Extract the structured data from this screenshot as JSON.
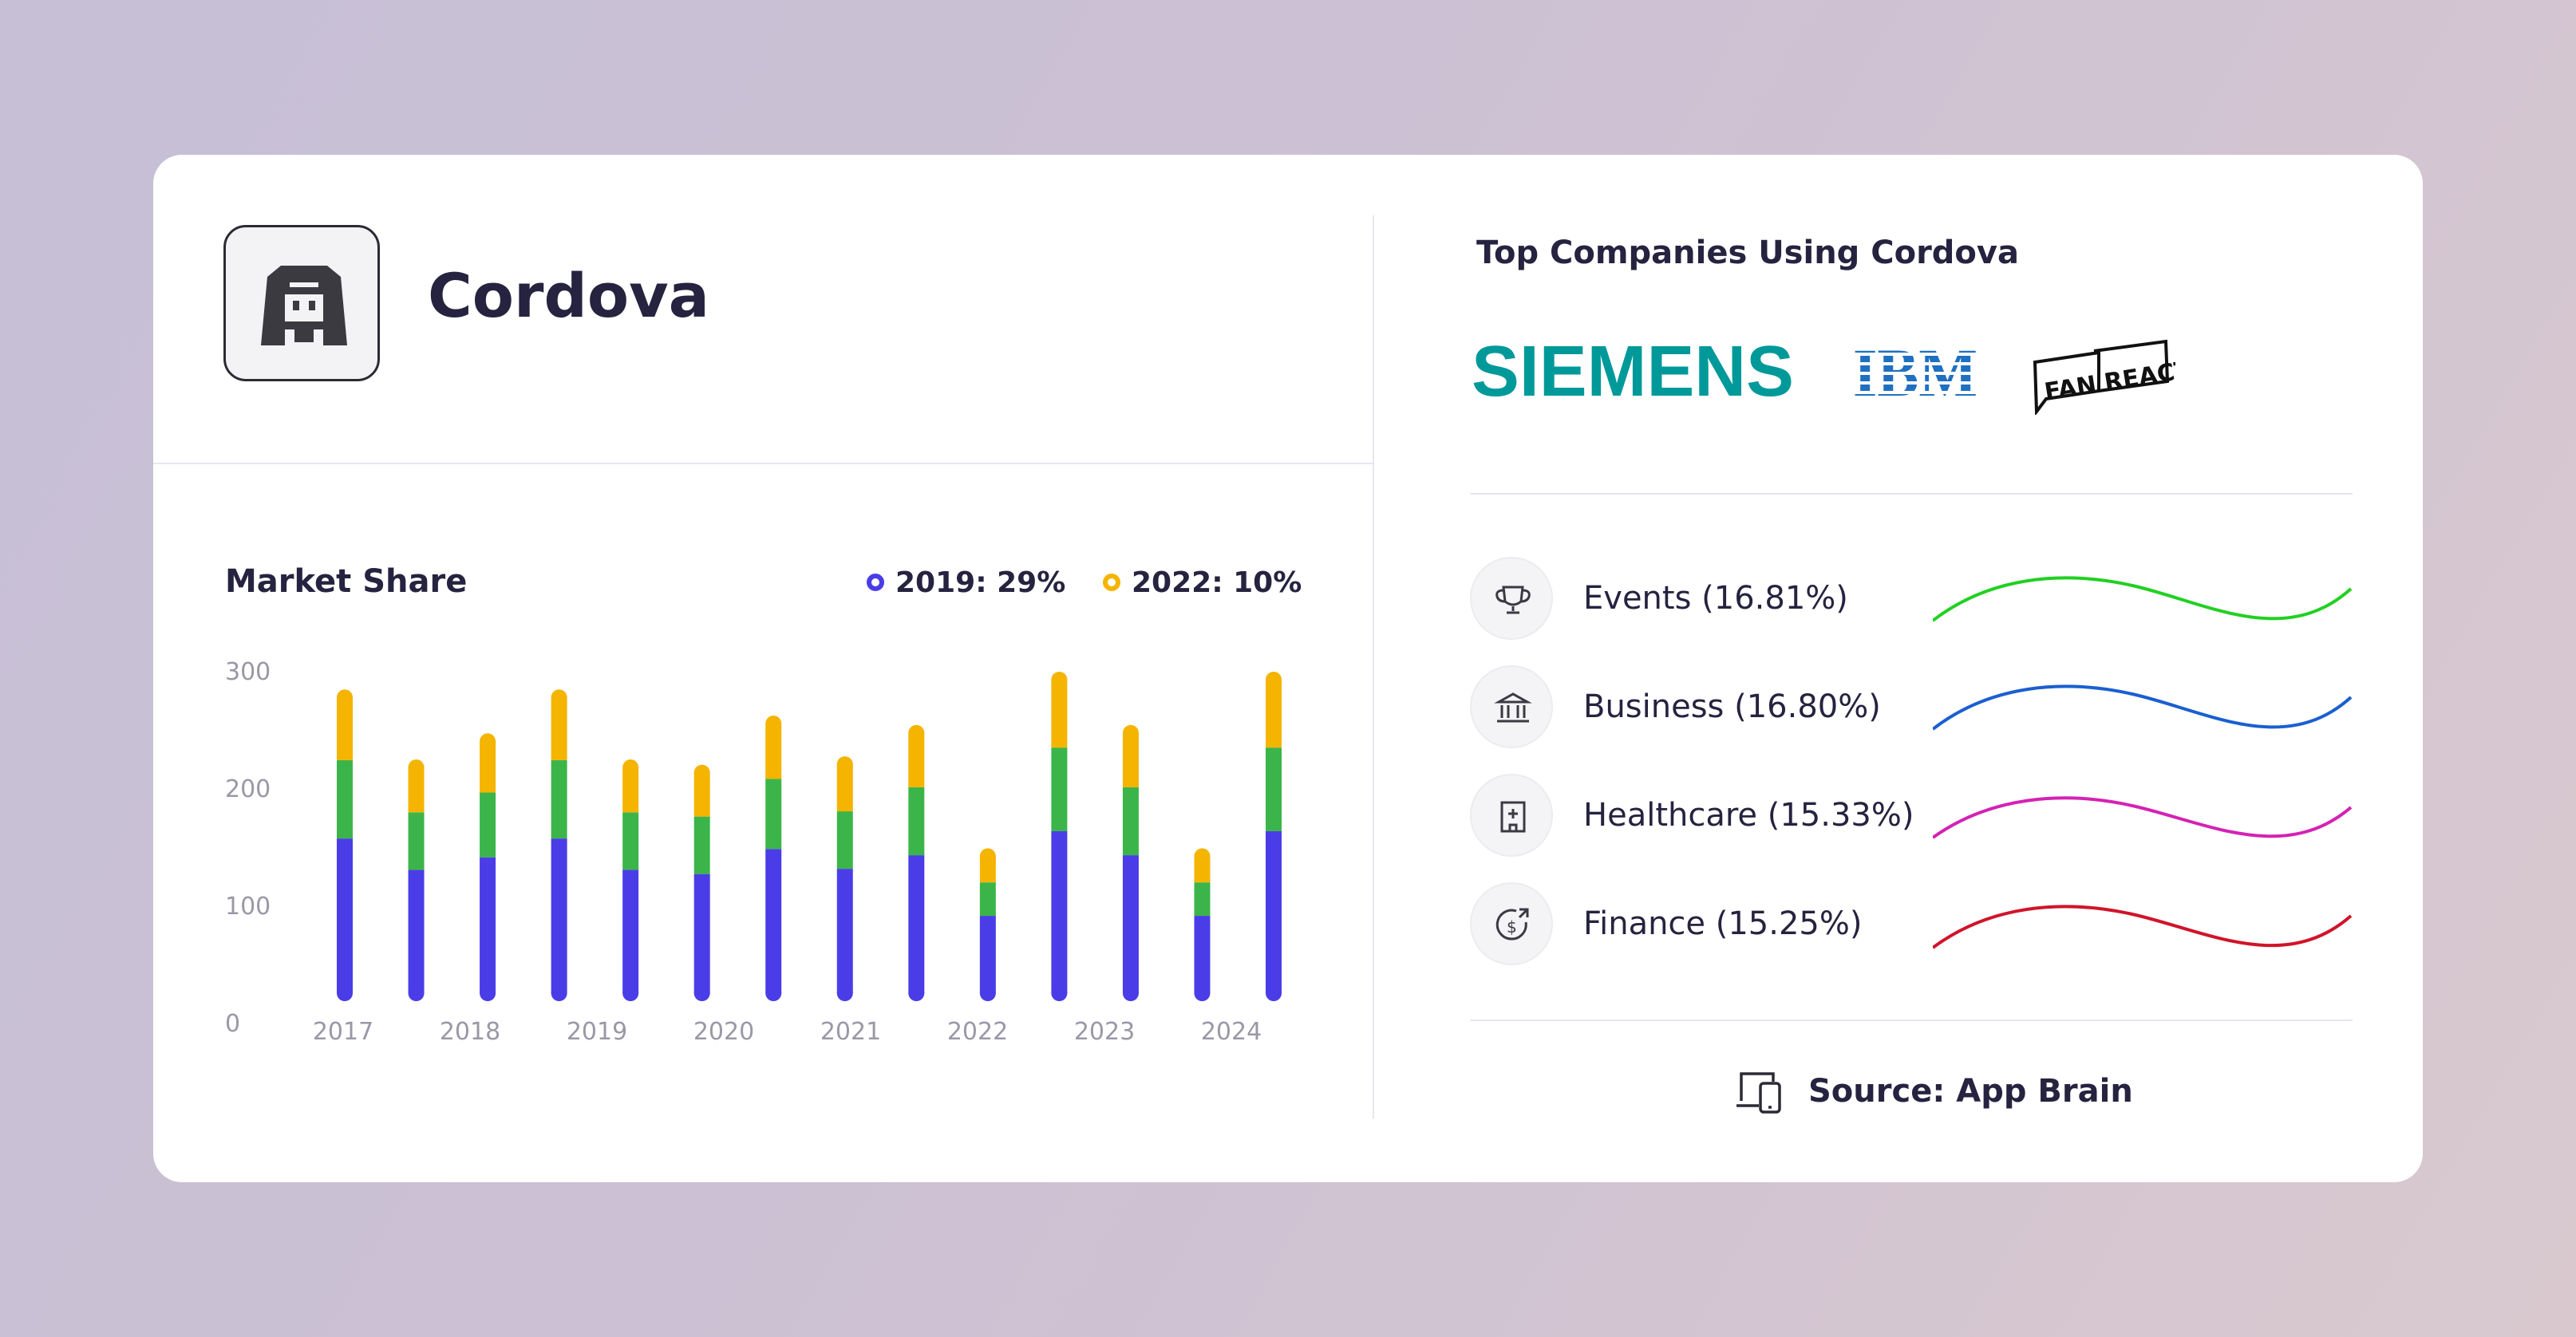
{
  "app": {
    "name": "Cordova",
    "logo_icon": "cordova-logo-icon"
  },
  "market_share": {
    "title": "Market Share",
    "legend": [
      {
        "label": "2019: 29%",
        "color": "#4a3de8"
      },
      {
        "label": "2022: 10%",
        "color": "#f4b400"
      }
    ]
  },
  "chart_data": {
    "type": "bar",
    "stacked": true,
    "y_ticks": [
      "300",
      "200",
      "100",
      "0"
    ],
    "x_tick_labels": [
      "2017",
      "2018",
      "2019",
      "2020",
      "2021",
      "2022",
      "2023",
      "2024"
    ],
    "ylim": [
      0,
      300
    ],
    "grid": false,
    "bar_count": 14,
    "series": [
      {
        "color": "#4a3de8",
        "values": [
          148,
          118,
          130,
          148,
          118,
          114,
          138,
          119,
          132,
          74,
          155,
          132,
          74,
          155
        ]
      },
      {
        "color": "#3bb54a",
        "values": [
          75,
          55,
          62,
          75,
          55,
          55,
          67,
          55,
          65,
          32,
          80,
          65,
          32,
          80
        ]
      },
      {
        "color": "#f4b400",
        "values": [
          60,
          43,
          49,
          60,
          43,
          42,
          53,
          45,
          52,
          25,
          65,
          52,
          25,
          65
        ]
      }
    ]
  },
  "top_companies": {
    "title": "Top Companies Using Cordova",
    "logos": [
      {
        "name": "SIEMENS",
        "icon": "siemens-logo",
        "color": "#009999"
      },
      {
        "name": "IBM",
        "icon": "ibm-logo",
        "color": "#1f70c1"
      },
      {
        "name": "FAN REACT",
        "icon": "fanreact-logo",
        "color": "#111111"
      }
    ]
  },
  "industries": [
    {
      "label": "Events (16.81%)",
      "icon": "trophy-icon",
      "color": "#22d022"
    },
    {
      "label": "Business (16.80%)",
      "icon": "bank-icon",
      "color": "#1a5fd0"
    },
    {
      "label": "Healthcare (15.33%)",
      "icon": "hospital-icon",
      "color": "#d422b4"
    },
    {
      "label": "Finance (15.25%)",
      "icon": "finance-icon",
      "color": "#d0142a"
    }
  ],
  "source": {
    "label": "Source: App Brain",
    "icon": "devices-icon"
  }
}
